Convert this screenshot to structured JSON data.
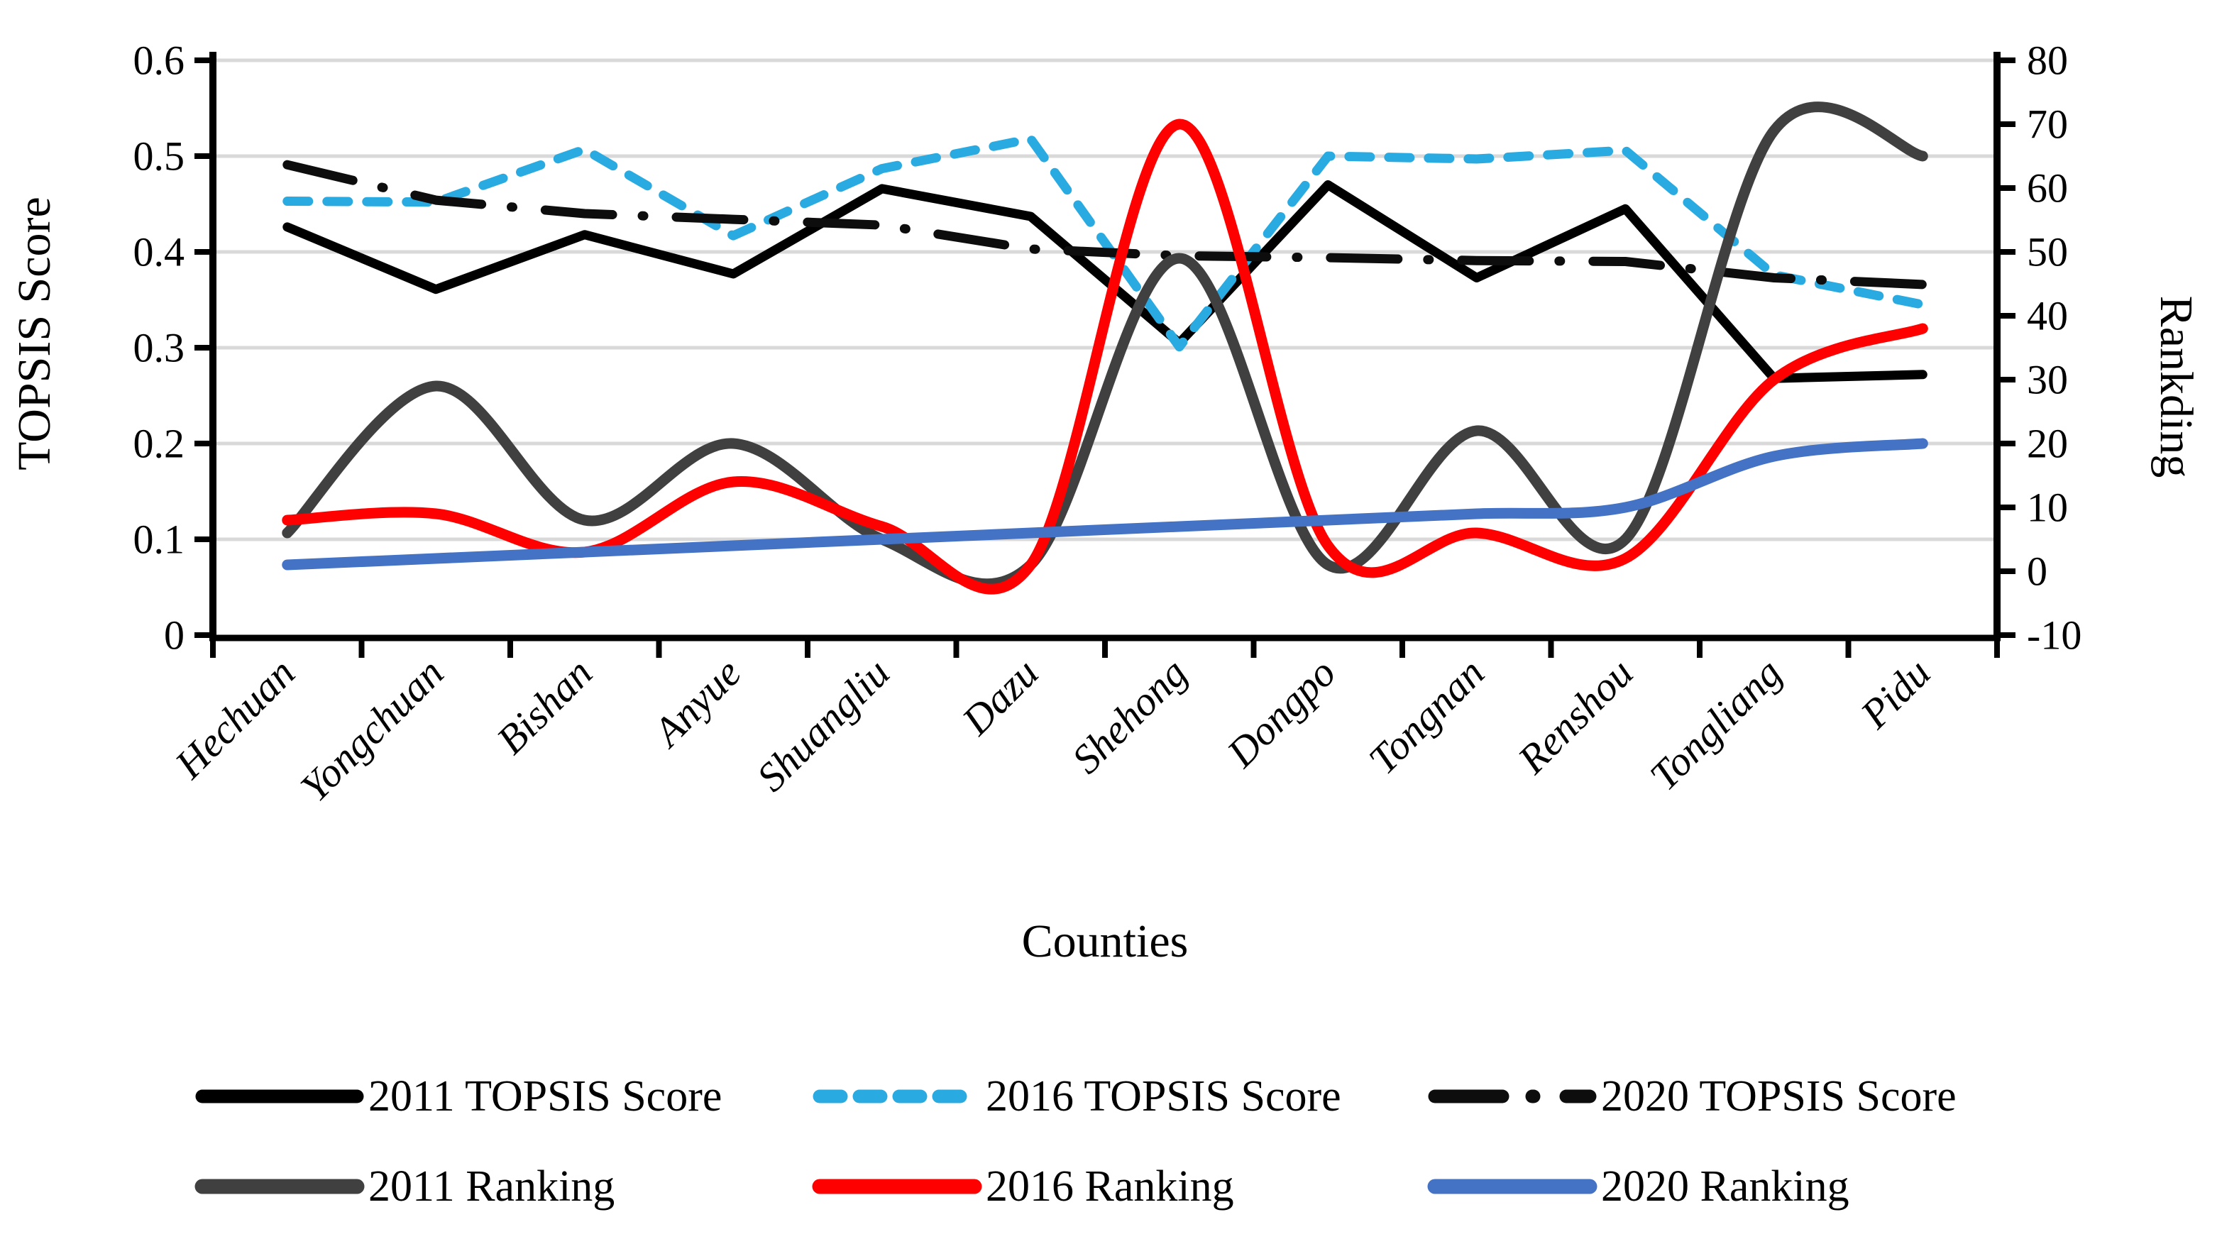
{
  "figure": {
    "background": "#FFFFFF"
  },
  "colors": {
    "grid": "#D9D9D9",
    "axis": "#000000",
    "text": "#000000",
    "topsis_2011": "#000000",
    "topsis_2016": "#29ABE2",
    "topsis_2020": "#0D0D0D",
    "ranking_2011": "#404040",
    "ranking_2016": "#FF0000",
    "ranking_2020": "#4472C4"
  },
  "chart_data": {
    "type": "line",
    "title": "",
    "xlabel": "Counties",
    "ylabel_left": "TOPSIS Score",
    "ylabel_right": "Rankding",
    "ylim_left": [
      0,
      0.6
    ],
    "ylim_right": [
      -10,
      80
    ],
    "grid": "horizontal-only",
    "legend_position": "bottom-two-rows",
    "categories": [
      "Hechuan",
      "Yongchuan",
      "Bishan",
      "Anyue",
      "Shuangliu",
      "Dazu",
      "Shehong",
      "Dongpo",
      "Tongnan",
      "Renshou",
      "Tongliang",
      "Pidu"
    ],
    "left_tick_labels": [
      "0",
      "0.1",
      "0.2",
      "0.3",
      "0.4",
      "0.5",
      "0.6"
    ],
    "right_tick_labels": [
      "-10",
      "0",
      "10",
      "20",
      "30",
      "40",
      "50",
      "60",
      "70",
      "80"
    ],
    "series": [
      {
        "name": "2011 TOPSIS Score",
        "axis": "left",
        "shape": "straight",
        "dash": "solid",
        "color": "#000000",
        "width": 13,
        "values": [
          0.426,
          0.361,
          0.418,
          0.377,
          0.466,
          0.437,
          0.305,
          0.47,
          0.373,
          0.445,
          0.268,
          0.272
        ]
      },
      {
        "name": "2016 TOPSIS Score",
        "axis": "left",
        "shape": "straight",
        "dash": "dashed",
        "color": "#29ABE2",
        "width": 13,
        "values": [
          0.453,
          0.452,
          0.507,
          0.417,
          0.487,
          0.518,
          0.301,
          0.5,
          0.497,
          0.506,
          0.376,
          0.345
        ]
      },
      {
        "name": "2020 TOPSIS Score",
        "axis": "left",
        "shape": "straight",
        "dash": "dashdot",
        "color": "#0D0D0D",
        "width": 13,
        "values": [
          0.491,
          0.454,
          0.44,
          0.434,
          0.428,
          0.403,
          0.396,
          0.394,
          0.391,
          0.39,
          0.373,
          0.366
        ]
      },
      {
        "name": "2011 Ranking",
        "axis": "right",
        "shape": "smooth",
        "dash": "solid",
        "color": "#404040",
        "width": 15,
        "values": [
          6,
          29,
          8,
          20,
          5,
          1,
          49,
          1,
          22,
          5,
          69,
          65
        ]
      },
      {
        "name": "2016 Ranking",
        "axis": "right",
        "shape": "smooth",
        "dash": "solid",
        "color": "#FF0000",
        "width": 15,
        "values": [
          8,
          9,
          3,
          14,
          7,
          1,
          70,
          4,
          6,
          2,
          30,
          38
        ]
      },
      {
        "name": "2020 Ranking",
        "axis": "right",
        "shape": "smooth",
        "dash": "solid",
        "color": "#4472C4",
        "width": 15,
        "values": [
          1,
          2,
          3,
          4,
          5,
          6,
          7,
          8,
          9,
          10,
          18,
          20
        ]
      }
    ]
  },
  "legend": {
    "rows": [
      [
        "2011 TOPSIS Score",
        "2016 TOPSIS Score",
        "2020 TOPSIS Score"
      ],
      [
        "2011 Ranking",
        "2016 Ranking",
        "2020 Ranking"
      ]
    ]
  }
}
